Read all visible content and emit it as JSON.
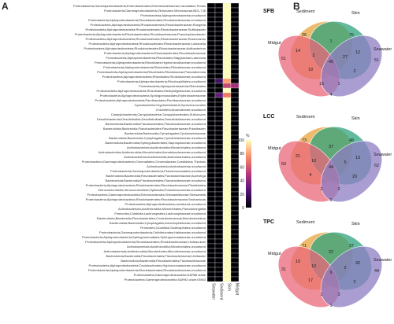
{
  "panels": {
    "a": "A",
    "b": "B"
  },
  "heatmap": {
    "columns": [
      "Seawater",
      "Sediment",
      "Skin",
      "Midgut"
    ],
    "legend": {
      "title": "%",
      "ticks": [
        "100",
        "80",
        "60",
        "40",
        "20",
        "0"
      ]
    },
    "rows": [
      "Proteobacteria;Gammaproteobacteria;Enterobacterales;Enterobacteriaceae;Candidatus Tenuis",
      "Proteobacteria;Gammaproteobacteria;Vibrionales;Vibrionaceae;BD1-7;I8",
      "Proteobacteria;Alphaproteobacteria;uncultured",
      "Proteobacteria;Alphaproteobacteria;Rhodobacterales;Rhodobacteraceae;uncultured",
      "Proteobacteria;Alphaproteobacteria;Rhodobacterales;Rhodobacteraceae;Ruegeria",
      "Proteobacteria;Alphaproteobacteria;Rhodobacterales;Rhodobacteraceae;Sulfitobacter",
      "Proteobacteria;Alphaproteobacteria;Rhodobacterales;Rhodobacteraceae;Pseudophaeobacter",
      "Proteobacteria;Alphaproteobacteria;Rhodobacterales;Rhodobacteraceae;Roseovarius",
      "Proteobacteria;Alphaproteobacteria;Rhodobacterales;Rhodobacteraceae;Loktanella",
      "Proteobacteria;Alphaproteobacteria;Rhodobacterales;Rhodobacteraceae;Actibacterium",
      "Proteobacteria;Alphaproteobacteria;Rhodobacterales;Rhodobacteraceae",
      "Proteobacteria;Alphaproteobacteria;Rhizobiales;Stappiaceae;Labrenzia",
      "Proteobacteria;Alphaproteobacteria;Rhizobiales;Hyphomicrobiaceae;uncultured",
      "Proteobacteria;Alphaproteobacteria;Rhizobiales;Rhizobiaceae;uncultured",
      "Proteobacteria;Alphaproteobacteria;Rhizobiales;Rhizobiaceae;Pseudahrensia",
      "Proteobacteria;Alphaproteobacteria;Rhizobiales;Rhodobiaceae;uncultured",
      "Proteobacteria;Alphaproteobacteria;Rhodospirillales;uncultured",
      "Proteobacteria;Alphaproteobacteria;Rhizobiales",
      "Proteobacteria;Alphaproteobacteria;Rhizobiales;Methyloligellaceae;uncultured",
      "Proteobacteria;Alphaproteobacteria;Sphingomonadales;Erythrobacteraceae",
      "Proteobacteria;Alphaproteobacteria;Parvibaculales;Parvibaculaceae;uncultured",
      "Cyanobacteria;Oxyphotobacteria;Synechococcales",
      "Chloroflexi;Anaerolineae;uncultured",
      "Campylobacterota;Campylobacteria;Campylobacterales;Sulfurovum",
      "Desulfobacterota;Desulfobulbia;Desulfobulbales;Desulfobulbaceae;uncultured",
      "Bacteroidota;Bacteroidia;Flavobacteriales;Flavobacteriaceae;uncultured",
      "Bacteroidota;Bacteroidia;Flavobacteriales;Flavobacteriaceae;Polaribacter",
      "Bacteroidota;Bacteroidia;Cytophagales;Cyclobacteriaceae",
      "Bacteroidota;Bacteroidia;Cytophagales;Cyclobacteriaceae;uncultured",
      "Bacteroidota;Bacteroidia;Sphingobacteriales;Saprospiraceae;uncultured",
      "Actinobacteriota;Acidimicrobiia;Microtrichales;uncultured",
      "Actinobacteriota;Acidimicrobiia;Microtrichales;Ilumatobacteraceae;uncultured",
      "Actinobacteriota;Acidimicrobiia;Actinomarinales;uncultured",
      "Proteobacteria;Gammaproteobacteria;Chromatiales;Chromatiaceae;Candidatus Thiobios",
      "Actinobacteriota;Actinobacteria;uncultured",
      "Proteobacteria;Gammaproteobacteria;Pseudomonadales;uncultured",
      "Bacteroidota;Bacteroidia;Flavobacteriales;Flavobacteriaceae;Aureivirga",
      "Bacteroidota;Bacteroidia;Flavobacteriales;Flavobacteriaceae;uncultured",
      "Proteobacteria;Alphaproteobacteria;Rhodobacterales;Rhodobacteraceae;Planktotalea",
      "Verrucomicrobiota;Verrucomicrobiae;Opitutales;Puniceicoccaceae;uncultured",
      "Proteobacteria;Gammaproteobacteria;Enterobacterales;Shewanellaceae;Shewanella",
      "Proteobacteria;Alphaproteobacteria;Rhodobacterales;Rhodobacteraceae;Seohaeicola",
      "Proteobacteria;Alphaproteobacteria;uncultured;uncultured",
      "Actinobacteriota;Acidimicrobiia;Microtrichales;Pseudohongiella",
      "Firmicutes;Clostridia;Lachnospirales;Lachnospiraceae;uncultured",
      "Bacteroidota;Bacteroidia;Flavobacteriales;Crocinitomicaceae;Brumimicrobium",
      "Bacteroidota;Bacteroidia;Cytophagales;Amoebophilaceae;uncultured",
      "Firmicutes;Clostridia;Oscillospirales;uncultured",
      "Proteobacteria;Gammaproteobacteria;Cellvibrionales;Halieaceae;uncultured",
      "Proteobacteria;Alphaproteobacteria;Sphingomonadales;Sphingomonadaceae;uncultured",
      "Proteobacteria;Alphaproteobacteria;Rhodobacterales;Rhodobacteraceae;Limibaculum",
      "Actinobacteriota;Acidimicrobiia;Microtrichales;uncultured",
      "Actinobacteriota;Acidimicrobiia;Microtrichales;Microtrichaceae;uncultured",
      "Bacteroidota;Bacteroidia;Flavobacteriales;Flavobacteriaceae;Ulvibacter",
      "Bacteroidota;Bacteroidia;Flavobacteriales;Flavobacteriaceae",
      "Proteobacteria;Alphaproteobacteria;Caulobacterales;Hyphomonadaceae;uncultured",
      "Proteobacteria;Alphaproteobacteria;Rhodobacterales;Rhodobacteraceae;uncultured",
      "Proteobacteria;Gammaproteobacteria;SAR86 clade",
      "Proteobacteria;Gammaproteobacteria;SAR92 clade;OM43"
    ],
    "values": [
      [
        0,
        0,
        100,
        0
      ],
      [
        0,
        0,
        100,
        0
      ],
      [
        0,
        0,
        100,
        0
      ],
      [
        0,
        0,
        100,
        0
      ],
      [
        0,
        0,
        100,
        0
      ],
      [
        0,
        0,
        100,
        0
      ],
      [
        0,
        0,
        100,
        0
      ],
      [
        0,
        0,
        100,
        0
      ],
      [
        0,
        0,
        100,
        0
      ],
      [
        0,
        0,
        100,
        0
      ],
      [
        0,
        0,
        100,
        0
      ],
      [
        0,
        0,
        100,
        0
      ],
      [
        0,
        0,
        100,
        0
      ],
      [
        0,
        0,
        100,
        0
      ],
      [
        0,
        0,
        100,
        0
      ],
      [
        0,
        0,
        100,
        0
      ],
      [
        0,
        20,
        80,
        0
      ],
      [
        0,
        0,
        55,
        45
      ],
      [
        0,
        0,
        100,
        0
      ],
      [
        0,
        30,
        70,
        0
      ],
      [
        0,
        0,
        100,
        0
      ],
      [
        0,
        0,
        100,
        0
      ],
      [
        0,
        0,
        100,
        0
      ],
      [
        0,
        0,
        100,
        0
      ],
      [
        0,
        0,
        100,
        0
      ],
      [
        0,
        0,
        100,
        0
      ],
      [
        0,
        0,
        100,
        0
      ],
      [
        0,
        0,
        100,
        0
      ],
      [
        0,
        0,
        100,
        0
      ],
      [
        0,
        0,
        100,
        0
      ],
      [
        0,
        0,
        100,
        0
      ],
      [
        0,
        0,
        100,
        0
      ],
      [
        0,
        0,
        100,
        0
      ],
      [
        0,
        0,
        100,
        0
      ],
      [
        0,
        0,
        100,
        0
      ],
      [
        0,
        0,
        100,
        0
      ],
      [
        0,
        0,
        100,
        0
      ],
      [
        0,
        0,
        100,
        0
      ],
      [
        0,
        0,
        100,
        0
      ],
      [
        0,
        0,
        100,
        0
      ],
      [
        0,
        0,
        100,
        0
      ],
      [
        0,
        0,
        100,
        0
      ],
      [
        0,
        0,
        100,
        0
      ],
      [
        0,
        0,
        100,
        0
      ],
      [
        0,
        0,
        100,
        0
      ],
      [
        0,
        0,
        100,
        0
      ],
      [
        0,
        0,
        100,
        0
      ],
      [
        0,
        0,
        100,
        0
      ],
      [
        0,
        0,
        100,
        0
      ],
      [
        0,
        0,
        100,
        0
      ],
      [
        0,
        0,
        100,
        0
      ],
      [
        0,
        0,
        100,
        0
      ],
      [
        0,
        0,
        100,
        0
      ],
      [
        0,
        0,
        100,
        0
      ],
      [
        0,
        0,
        100,
        0
      ],
      [
        0,
        0,
        100,
        0
      ],
      [
        0,
        0,
        100,
        0
      ],
      [
        0,
        0,
        100,
        0
      ],
      [
        0,
        0,
        100,
        0
      ]
    ],
    "color_low": "#000004",
    "color_high": "#FCFDBF"
  },
  "venn": [
    {
      "title": "SFB",
      "sets": [
        "Sediment",
        "Skin",
        "Midgut",
        "Seawater"
      ],
      "counts": [
        "26",
        "75",
        "61",
        "51",
        "1",
        "14",
        "12",
        "19",
        "2",
        "40",
        "15",
        "1",
        "2",
        "27",
        "4"
      ]
    },
    {
      "title": "LCC",
      "sets": [
        "Sediment",
        "Skin",
        "Midgut",
        "Seawater"
      ],
      "counts": [
        "73",
        "48",
        "59",
        "62",
        "37",
        "21",
        "13",
        "4",
        "20",
        "44",
        "2",
        "2",
        "10",
        "5",
        "0"
      ]
    },
    {
      "title": "TPC",
      "sets": [
        "Sediment",
        "Skin",
        "Midgut",
        "Seawater"
      ],
      "counts": [
        "71",
        "37",
        "31",
        "44",
        "22",
        "10",
        "42",
        "17",
        "2",
        "9",
        "1",
        "3",
        "10",
        "2",
        "1"
      ]
    }
  ],
  "venn_colors": {
    "Sediment": "#E8A33C",
    "Skin": "#2FA37E",
    "Midgut": "#E9677A",
    "Seawater": "#8E7CC3"
  }
}
